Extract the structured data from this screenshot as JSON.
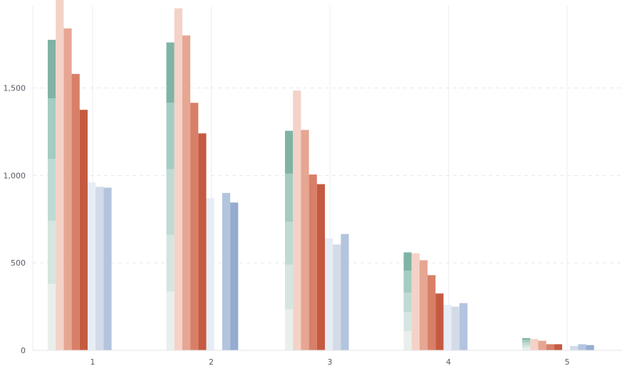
{
  "chart_data": {
    "type": "bar",
    "categories": [
      "1",
      "2",
      "3",
      "4",
      "5"
    ],
    "yticks": [
      "500",
      "1,000",
      "1,500"
    ],
    "yticks_values": [
      500,
      1000,
      1500
    ],
    "ylim": [
      0,
      1970
    ],
    "grid": {
      "horizontal": "dashed",
      "vertical": "solid"
    },
    "groups": [
      {
        "kind": "stacked",
        "segments": [
          {
            "values": [
              380,
              335,
              235,
              110,
              15
            ],
            "color": "#e9efec"
          },
          {
            "values": [
              360,
              325,
              255,
              110,
              15
            ],
            "color": "#d5e5e0"
          },
          {
            "values": [
              355,
              375,
              245,
              110,
              15
            ],
            "color": "#bfdad3"
          },
          {
            "values": [
              345,
              380,
              275,
              125,
              15
            ],
            "color": "#a4ccc2"
          },
          {
            "values": [
              335,
              345,
              245,
              105,
              10
            ],
            "color": "#7fb3a6"
          }
        ]
      },
      {
        "kind": "bars",
        "series": [
          {
            "values": [
              null,
              1955,
              1485,
              555,
              65
            ],
            "color": "#f4d2c7"
          },
          {
            "values": [
              1840,
              1800,
              1260,
              515,
              55
            ],
            "color": "#e6a692"
          },
          {
            "values": [
              1580,
              1415,
              1005,
              430,
              35
            ],
            "color": "#d87f68"
          },
          {
            "values": [
              1375,
              1240,
              950,
              325,
              35
            ],
            "color": "#c55a41"
          }
        ]
      },
      {
        "kind": "bars",
        "series": [
          {
            "values": [
              960,
              870,
              640,
              260,
              0
            ],
            "color": "#e7ecf5"
          },
          {
            "values": [
              935,
              0,
              605,
              250,
              25
            ],
            "color": "#d3dbe9"
          },
          {
            "values": [
              930,
              900,
              665,
              270,
              35
            ],
            "color": "#b3c4de"
          },
          {
            "values": [
              0,
              845,
              0,
              0,
              30
            ],
            "color": "#95acd0"
          }
        ]
      }
    ]
  }
}
